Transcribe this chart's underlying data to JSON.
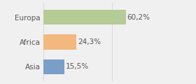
{
  "categories": [
    "Europa",
    "Africa",
    "Asia"
  ],
  "values": [
    60.2,
    24.3,
    15.5
  ],
  "labels": [
    "60,2%",
    "24,3%",
    "15,5%"
  ],
  "bar_colors": [
    "#b5cc96",
    "#f2b87e",
    "#7b9ec8"
  ],
  "background_color": "#f0f0f0",
  "xlim": [
    0,
    80
  ],
  "bar_height": 0.6,
  "label_fontsize": 7.5,
  "tick_fontsize": 7.5,
  "grid_color": "#d0d0d0"
}
